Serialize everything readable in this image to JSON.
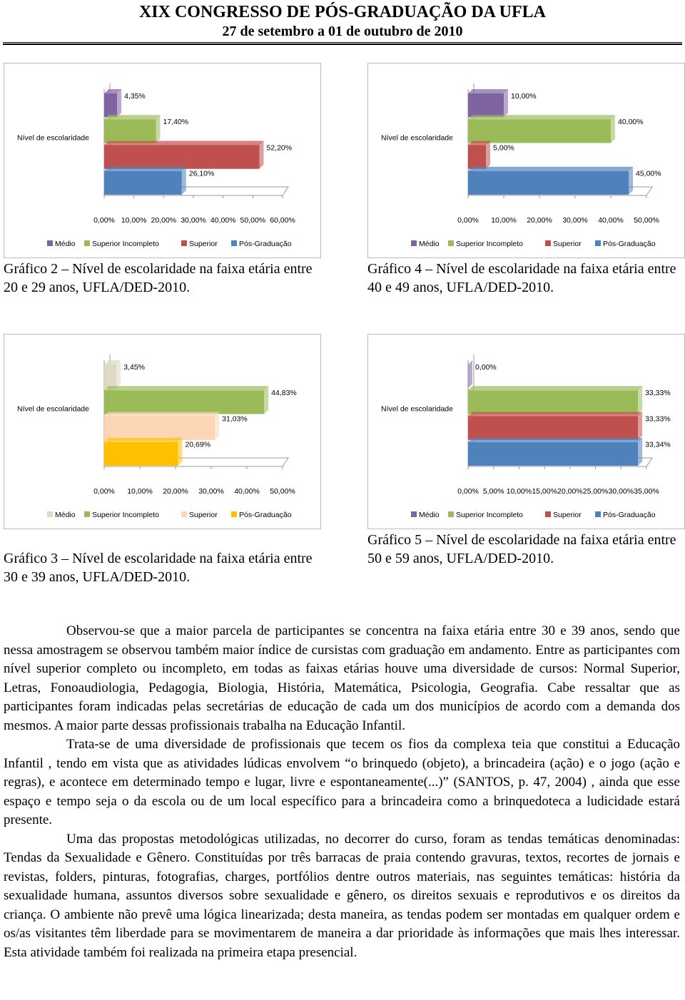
{
  "header": {
    "title": "XIX CONGRESSO DE PÓS-GRADUAÇÃO DA UFLA",
    "date": "27 de setembro a 01 de outubro de 2010"
  },
  "chart_data": [
    {
      "type": "bar",
      "orientation": "horizontal",
      "caption": "Gráfico 2 – Nível de escolaridade na faixa etária entre 20 e 29 anos, UFLA/DED-2010.",
      "categories": [
        "Nível de escolaridade"
      ],
      "series": [
        {
          "name": "Médio",
          "color": "#8064a2",
          "values": [
            4.35
          ],
          "value_labels": [
            "4,35%"
          ]
        },
        {
          "name": "Superior Incompleto",
          "color": "#9bbb59",
          "values": [
            17.4
          ],
          "value_labels": [
            "17,40%"
          ]
        },
        {
          "name": "Superior",
          "color": "#c0504d",
          "values": [
            52.2
          ],
          "value_labels": [
            "52,20%"
          ]
        },
        {
          "name": "Pós-Graduação",
          "color": "#4f81bd",
          "values": [
            26.1
          ],
          "value_labels": [
            "26,10%"
          ]
        }
      ],
      "xlim": [
        0,
        60
      ],
      "xticks": [
        {
          "value": 0,
          "label": "0,00%"
        },
        {
          "value": 10,
          "label": "10,00%"
        },
        {
          "value": 20,
          "label": "20,00%"
        },
        {
          "value": 30,
          "label": "30,00%"
        },
        {
          "value": 40,
          "label": "40,00%"
        },
        {
          "value": 50,
          "label": "50,00%"
        },
        {
          "value": 60,
          "label": "60,00%"
        }
      ]
    },
    {
      "type": "bar",
      "orientation": "horizontal",
      "caption": "Gráfico 4 – Nível de escolaridade na faixa etária entre 40 e 49 anos, UFLA/DED-2010.",
      "categories": [
        "Nível de escolaridade"
      ],
      "series": [
        {
          "name": "Médio",
          "color": "#8064a2",
          "values": [
            10.0
          ],
          "value_labels": [
            "10,00%"
          ]
        },
        {
          "name": "Superior Incompleto",
          "color": "#9bbb59",
          "values": [
            40.0
          ],
          "value_labels": [
            "40,00%"
          ]
        },
        {
          "name": "Superior",
          "color": "#c0504d",
          "values": [
            5.0
          ],
          "value_labels": [
            "5,00%"
          ]
        },
        {
          "name": "Pós-Graduação",
          "color": "#4f81bd",
          "values": [
            45.0
          ],
          "value_labels": [
            "45,00%"
          ]
        }
      ],
      "xlim": [
        0,
        50
      ],
      "xticks": [
        {
          "value": 0,
          "label": "0,00%"
        },
        {
          "value": 10,
          "label": "10,00%"
        },
        {
          "value": 20,
          "label": "20,00%"
        },
        {
          "value": 30,
          "label": "30,00%"
        },
        {
          "value": 40,
          "label": "40,00%"
        },
        {
          "value": 50,
          "label": "50,00%"
        }
      ]
    },
    {
      "type": "bar",
      "orientation": "horizontal",
      "caption": "Gráfico 3 – Nível de escolaridade na faixa etária entre 30 e 39 anos, UFLA/DED-2010.",
      "categories": [
        "Nível de escolaridade"
      ],
      "series": [
        {
          "name": "Médio",
          "color": "#ddd9c3",
          "values": [
            3.45
          ],
          "value_labels": [
            "3,45%"
          ]
        },
        {
          "name": "Superior Incompleto",
          "color": "#9bbb59",
          "values": [
            44.83
          ],
          "value_labels": [
            "44,83%"
          ]
        },
        {
          "name": "Superior",
          "color": "#fcd5b4",
          "values": [
            31.03
          ],
          "value_labels": [
            "31,03%"
          ]
        },
        {
          "name": "Pós-Graduação",
          "color": "#ffc000",
          "values": [
            20.69
          ],
          "value_labels": [
            "20,69%"
          ]
        }
      ],
      "xlim": [
        0,
        50
      ],
      "xticks": [
        {
          "value": 0,
          "label": "0,00%"
        },
        {
          "value": 10,
          "label": "10,00%"
        },
        {
          "value": 20,
          "label": "20,00%"
        },
        {
          "value": 30,
          "label": "30,00%"
        },
        {
          "value": 40,
          "label": "40,00%"
        },
        {
          "value": 50,
          "label": "50,00%"
        }
      ]
    },
    {
      "type": "bar",
      "orientation": "horizontal",
      "caption": "Gráfico 5 – Nível de escolaridade na faixa etária entre 50 e 59 anos, UFLA/DED-2010.",
      "categories": [
        "Nível de escolaridade"
      ],
      "series": [
        {
          "name": "Médio",
          "color": "#8064a2",
          "values": [
            0.0
          ],
          "value_labels": [
            "0,00%"
          ]
        },
        {
          "name": "Superior Incompleto",
          "color": "#9bbb59",
          "values": [
            33.33
          ],
          "value_labels": [
            "33,33%"
          ]
        },
        {
          "name": "Superior",
          "color": "#c0504d",
          "values": [
            33.33
          ],
          "value_labels": [
            "33,33%"
          ]
        },
        {
          "name": "Pós-Graduação",
          "color": "#4f81bd",
          "values": [
            33.34
          ],
          "value_labels": [
            "33,34%"
          ]
        }
      ],
      "xlim": [
        0,
        35
      ],
      "xticks": [
        {
          "value": 0,
          "label": "0,00%"
        },
        {
          "value": 5,
          "label": "5,00%"
        },
        {
          "value": 10,
          "label": "10,00%"
        },
        {
          "value": 15,
          "label": "15,00%"
        },
        {
          "value": 20,
          "label": "20,00%"
        },
        {
          "value": 25,
          "label": "25,00%"
        },
        {
          "value": 30,
          "label": "30,00%"
        },
        {
          "value": 35,
          "label": "35,00%"
        }
      ]
    }
  ],
  "paragraphs": [
    "Observou-se que a maior parcela de participantes se concentra na faixa etária entre 30 e 39 anos, sendo que nessa amostragem se observou também maior índice de cursistas com graduação em andamento. Entre as participantes com nível superior completo ou incompleto, em todas as faixas etárias houve uma diversidade de cursos: Normal Superior, Letras, Fonoaudiologia, Pedagogia, Biologia, História, Matemática, Psicologia, Geografia. Cabe ressaltar que as participantes foram indicadas pelas secretárias de educação de cada um dos municípios de acordo com a demanda dos mesmos. A maior parte dessas profissionais trabalha na Educação Infantil.",
    "Trata-se de uma diversidade de profissionais que tecem os fios da complexa teia que constitui a Educação Infantil , tendo em vista que as atividades lúdicas envolvem “o brinquedo (objeto), a brincadeira (ação) e o jogo (ação e regras), e acontece em determinado tempo e lugar, livre e espontaneamente(...)” (SANTOS, p. 47, 2004) , ainda que esse espaço e tempo seja o da escola ou de um local específico para a brincadeira como a brinquedoteca a ludicidade estará presente.",
    "Uma das propostas metodológicas utilizadas, no decorrer do curso, foram as tendas temáticas denominadas: Tendas da Sexualidade e Gênero. Constituídas por três barracas de praia contendo gravuras, textos, recortes de jornais e revistas, folders, pinturas, fotografias, charges, portfólios dentre outros materiais, nas seguintes temáticas: história da sexualidade humana, assuntos diversos sobre sexualidade e gênero, os direitos sexuais e reprodutivos e os direitos da criança. O ambiente não prevê uma lógica linearizada; desta maneira, as tendas podem ser montadas em qualquer ordem e os/as visitantes têm liberdade para se movimentarem de maneira a dar prioridade às informações que mais lhes interessar. Esta atividade também foi realizada na primeira etapa presencial."
  ]
}
